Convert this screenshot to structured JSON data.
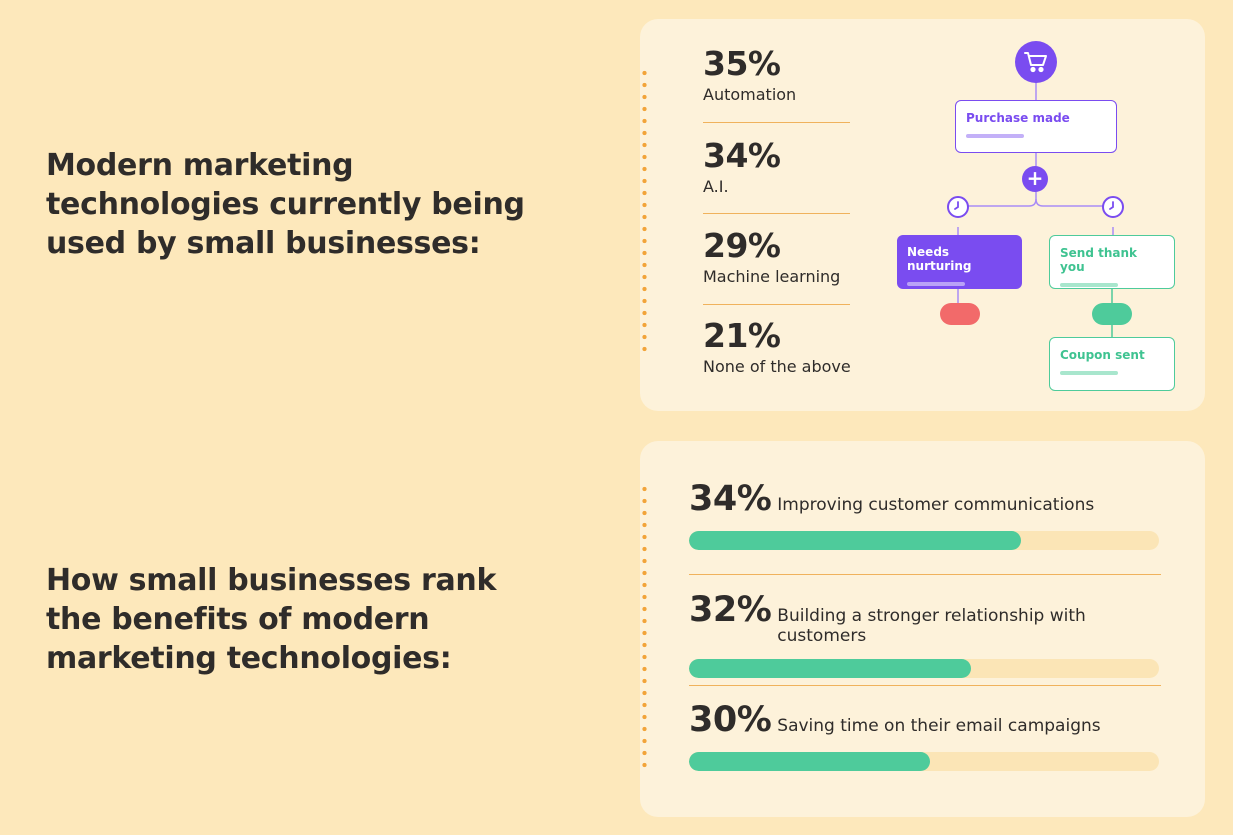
{
  "headings": {
    "tech_used": "Modern marketing technologies currently being used by small businesses:",
    "benefits": "How small businesses rank the benefits of modern marketing technologies:"
  },
  "tech_stats": [
    {
      "value": "35%",
      "label": "Automation"
    },
    {
      "value": "34%",
      "label": "A.I."
    },
    {
      "value": "29%",
      "label": "Machine learning"
    },
    {
      "value": "21%",
      "label": "None of the above"
    }
  ],
  "workflow": {
    "trigger_icon": "shopping-cart-icon",
    "purchase_made": "Purchase made",
    "needs_nurturing": "Needs nurturing",
    "send_thank_you": "Send thank you",
    "coupon_sent": "Coupon sent"
  },
  "benefits": [
    {
      "value": "34%",
      "label": "Improving customer communications"
    },
    {
      "value": "32%",
      "label": "Building a stronger relationship with customers"
    },
    {
      "value": "30%",
      "label": "Saving time on their email campaigns"
    }
  ],
  "colors": {
    "background": "#fde8bb",
    "card": "#fdf2da",
    "accent_purple": "#7a4cf0",
    "accent_green": "#4ecb9b",
    "accent_red": "#f26a6a",
    "divider": "#f0b25c"
  },
  "chart_data": [
    {
      "type": "table",
      "title": "Modern marketing technologies currently being used by small businesses:",
      "categories": [
        "Automation",
        "A.I.",
        "Machine learning",
        "None of the above"
      ],
      "values": [
        35,
        34,
        29,
        21
      ]
    },
    {
      "type": "bar",
      "title": "How small businesses rank the benefits of modern marketing technologies:",
      "categories": [
        "Improving customer communications",
        "Building a stronger relationship with customers",
        "Saving time on their email campaigns"
      ],
      "values": [
        34,
        32,
        30
      ],
      "fill_fraction": [
        0.706,
        0.601,
        0.513
      ],
      "orientation": "horizontal",
      "grid": false
    }
  ]
}
